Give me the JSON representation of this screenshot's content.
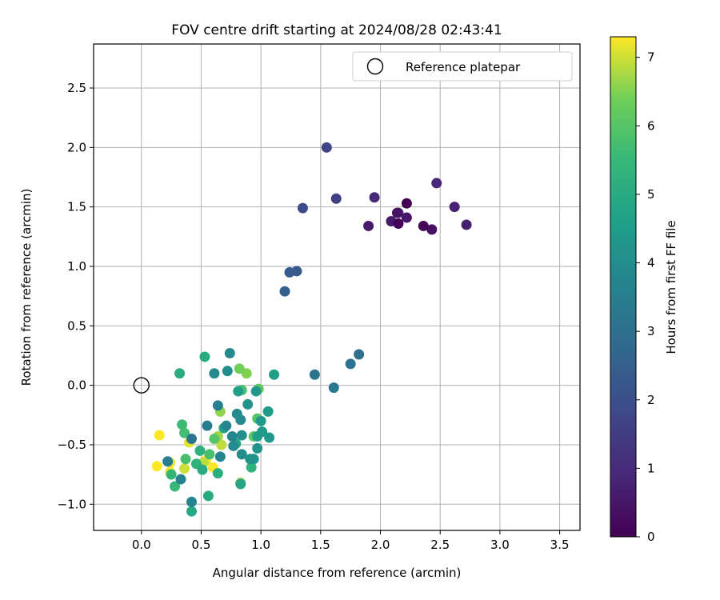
{
  "chart_data": {
    "type": "scatter",
    "title": "FOV centre drift starting at 2024/08/28 02:43:41",
    "xlabel": "Angular distance from reference (arcmin)",
    "ylabel": "Rotation from reference (arcmin)",
    "xlim": [
      -0.4,
      3.67
    ],
    "ylim": [
      -1.22,
      2.87
    ],
    "xticks": [
      "0.0",
      "0.5",
      "1.0",
      "1.5",
      "2.0",
      "2.5",
      "3.0",
      "3.5"
    ],
    "yticks": [
      "−1.0",
      "−0.5",
      "0.0",
      "0.5",
      "1.0",
      "1.5",
      "2.0",
      "2.5"
    ],
    "grid": true,
    "legend": {
      "placement": "top-right",
      "entries": [
        "Reference platepar"
      ]
    },
    "reference_point": {
      "x": 0.0,
      "y": 0.0
    },
    "colorbar": {
      "label": "Hours from first FF file",
      "range": [
        0,
        7.3
      ],
      "ticks": [
        "0",
        "1",
        "2",
        "3",
        "4",
        "5",
        "6",
        "7"
      ],
      "colormap": "viridis"
    },
    "points": [
      {
        "x": 2.22,
        "y": 1.53,
        "c": 0.0
      },
      {
        "x": 2.15,
        "y": 1.36,
        "c": 0.05
      },
      {
        "x": 2.36,
        "y": 1.34,
        "c": 0.1
      },
      {
        "x": 2.43,
        "y": 1.31,
        "c": 0.3
      },
      {
        "x": 2.14,
        "y": 1.45,
        "c": 0.4
      },
      {
        "x": 2.22,
        "y": 1.41,
        "c": 0.5
      },
      {
        "x": 2.09,
        "y": 1.38,
        "c": 0.55
      },
      {
        "x": 1.9,
        "y": 1.34,
        "c": 0.6
      },
      {
        "x": 2.72,
        "y": 1.35,
        "c": 0.7
      },
      {
        "x": 2.62,
        "y": 1.5,
        "c": 0.8
      },
      {
        "x": 2.47,
        "y": 1.7,
        "c": 0.9
      },
      {
        "x": 1.95,
        "y": 1.58,
        "c": 1.0
      },
      {
        "x": 2.15,
        "y": 1.45,
        "c": 1.2
      },
      {
        "x": 1.63,
        "y": 1.57,
        "c": 1.6
      },
      {
        "x": 1.55,
        "y": 2.0,
        "c": 1.7
      },
      {
        "x": 1.35,
        "y": 1.49,
        "c": 1.9
      },
      {
        "x": 1.3,
        "y": 0.96,
        "c": 2.3
      },
      {
        "x": 1.24,
        "y": 0.95,
        "c": 2.35
      },
      {
        "x": 1.2,
        "y": 0.79,
        "c": 2.5
      },
      {
        "x": 1.82,
        "y": 0.26,
        "c": 3.0
      },
      {
        "x": 1.75,
        "y": 0.18,
        "c": 3.1
      },
      {
        "x": 1.45,
        "y": 0.09,
        "c": 3.2
      },
      {
        "x": 1.61,
        "y": -0.02,
        "c": 3.3
      },
      {
        "x": 0.42,
        "y": -0.45,
        "c": 3.2
      },
      {
        "x": 0.55,
        "y": -0.34,
        "c": 3.4
      },
      {
        "x": 0.64,
        "y": -0.17,
        "c": 3.5
      },
      {
        "x": 0.22,
        "y": -0.64,
        "c": 3.5
      },
      {
        "x": 0.33,
        "y": -0.79,
        "c": 3.6
      },
      {
        "x": 0.42,
        "y": -0.98,
        "c": 3.7
      },
      {
        "x": 0.66,
        "y": -0.6,
        "c": 3.7
      },
      {
        "x": 0.71,
        "y": -0.34,
        "c": 3.8
      },
      {
        "x": 0.74,
        "y": 0.27,
        "c": 3.9
      },
      {
        "x": 0.61,
        "y": 0.1,
        "c": 3.9
      },
      {
        "x": 0.72,
        "y": 0.12,
        "c": 4.0
      },
      {
        "x": 0.8,
        "y": -0.24,
        "c": 3.9
      },
      {
        "x": 0.83,
        "y": -0.29,
        "c": 3.9
      },
      {
        "x": 0.76,
        "y": -0.43,
        "c": 3.8
      },
      {
        "x": 0.77,
        "y": -0.51,
        "c": 3.9
      },
      {
        "x": 0.84,
        "y": -0.58,
        "c": 4.0
      },
      {
        "x": 0.84,
        "y": -0.42,
        "c": 4.1
      },
      {
        "x": 0.89,
        "y": -0.16,
        "c": 4.2
      },
      {
        "x": 0.91,
        "y": -0.62,
        "c": 4.2
      },
      {
        "x": 0.94,
        "y": -0.62,
        "c": 4.3
      },
      {
        "x": 0.97,
        "y": -0.53,
        "c": 4.2
      },
      {
        "x": 0.96,
        "y": -0.05,
        "c": 4.3
      },
      {
        "x": 1.0,
        "y": -0.3,
        "c": 4.4
      },
      {
        "x": 1.01,
        "y": -0.39,
        "c": 4.5
      },
      {
        "x": 1.07,
        "y": -0.44,
        "c": 4.4
      },
      {
        "x": 1.06,
        "y": -0.22,
        "c": 4.5
      },
      {
        "x": 0.81,
        "y": -0.05,
        "c": 4.6
      },
      {
        "x": 0.79,
        "y": -0.49,
        "c": 4.8
      },
      {
        "x": 1.11,
        "y": 0.09,
        "c": 4.6
      },
      {
        "x": 0.97,
        "y": -0.43,
        "c": 4.6
      },
      {
        "x": 0.69,
        "y": -0.36,
        "c": 4.7
      },
      {
        "x": 0.83,
        "y": -0.83,
        "c": 4.8
      },
      {
        "x": 0.42,
        "y": -1.06,
        "c": 4.9
      },
      {
        "x": 0.56,
        "y": -0.93,
        "c": 5.0
      },
      {
        "x": 0.53,
        "y": 0.24,
        "c": 5.0
      },
      {
        "x": 0.32,
        "y": 0.1,
        "c": 5.0
      },
      {
        "x": 0.51,
        "y": -0.71,
        "c": 5.0
      },
      {
        "x": 0.64,
        "y": -0.74,
        "c": 5.1
      },
      {
        "x": 0.49,
        "y": -0.55,
        "c": 5.2
      },
      {
        "x": 0.46,
        "y": -0.66,
        "c": 5.3
      },
      {
        "x": 0.92,
        "y": -0.69,
        "c": 5.3
      },
      {
        "x": 0.25,
        "y": -0.75,
        "c": 5.4
      },
      {
        "x": 0.28,
        "y": -0.85,
        "c": 5.5
      },
      {
        "x": 0.34,
        "y": -0.33,
        "c": 5.6
      },
      {
        "x": 0.36,
        "y": -0.4,
        "c": 5.7
      },
      {
        "x": 0.37,
        "y": -0.62,
        "c": 5.8
      },
      {
        "x": 0.57,
        "y": -0.58,
        "c": 5.8
      },
      {
        "x": 0.61,
        "y": -0.45,
        "c": 6.0
      },
      {
        "x": 0.84,
        "y": -0.04,
        "c": 5.8
      },
      {
        "x": 0.97,
        "y": -0.28,
        "c": 6.0
      },
      {
        "x": 0.94,
        "y": -0.43,
        "c": 6.1
      },
      {
        "x": 0.98,
        "y": -0.03,
        "c": 6.2
      },
      {
        "x": 0.82,
        "y": 0.14,
        "c": 6.4
      },
      {
        "x": 0.88,
        "y": 0.1,
        "c": 6.5
      },
      {
        "x": 0.66,
        "y": -0.22,
        "c": 6.6
      },
      {
        "x": 0.64,
        "y": -0.43,
        "c": 6.7
      },
      {
        "x": 0.67,
        "y": -0.5,
        "c": 6.9
      },
      {
        "x": 0.52,
        "y": -0.65,
        "c": 6.9
      },
      {
        "x": 0.83,
        "y": -0.82,
        "c": 6.6
      },
      {
        "x": 0.36,
        "y": -0.7,
        "c": 7.0
      },
      {
        "x": 0.4,
        "y": -0.48,
        "c": 7.1
      },
      {
        "x": 0.24,
        "y": -0.65,
        "c": 7.2
      },
      {
        "x": 0.24,
        "y": -0.73,
        "c": 7.2
      },
      {
        "x": 0.15,
        "y": -0.42,
        "c": 7.3
      },
      {
        "x": 0.13,
        "y": -0.68,
        "c": 7.3
      },
      {
        "x": 0.6,
        "y": -0.69,
        "c": 7.3
      },
      {
        "x": 0.54,
        "y": -0.63,
        "c": 7.25
      }
    ]
  }
}
